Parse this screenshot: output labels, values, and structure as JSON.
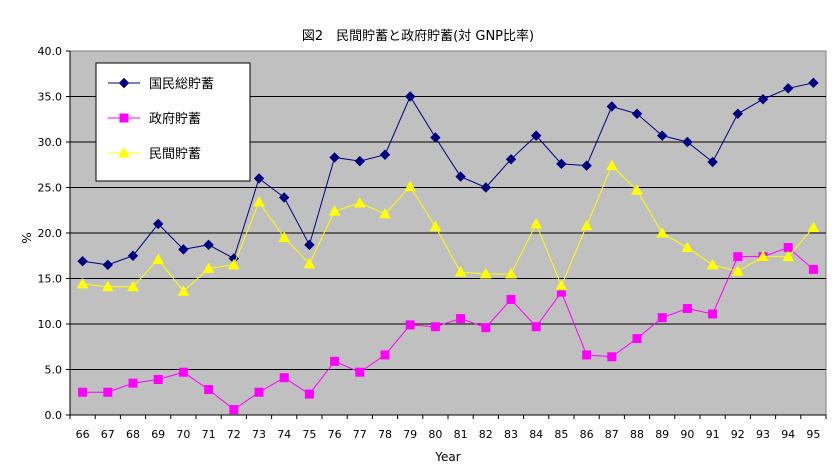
{
  "chart_data": {
    "type": "line",
    "title": "図2　民間貯蓄と政府貯蓄(対 GNP比率)",
    "xlabel": "Year",
    "ylabel": "%",
    "ylim": [
      0,
      40
    ],
    "y_ticks": [
      "0.0",
      "5.0",
      "10.0",
      "15.0",
      "20.0",
      "25.0",
      "30.0",
      "35.0",
      "40.0"
    ],
    "grid": true,
    "legend_position": "top-left",
    "categories": [
      "66",
      "67",
      "68",
      "69",
      "70",
      "71",
      "72",
      "73",
      "74",
      "75",
      "76",
      "77",
      "78",
      "79",
      "80",
      "81",
      "82",
      "83",
      "84",
      "85",
      "86",
      "87",
      "88",
      "89",
      "90",
      "91",
      "92",
      "93",
      "94",
      "95"
    ],
    "series": [
      {
        "name": "国民総貯蓄",
        "color": "#000080",
        "marker": "diamond",
        "values": [
          16.9,
          16.5,
          17.5,
          21.0,
          18.2,
          18.7,
          17.2,
          26.0,
          23.9,
          18.7,
          28.3,
          27.9,
          28.6,
          35.0,
          30.5,
          26.2,
          25.0,
          28.1,
          30.7,
          27.6,
          27.4,
          33.9,
          33.1,
          30.7,
          30.0,
          27.8,
          33.1,
          34.7,
          35.9,
          36.5
        ]
      },
      {
        "name": "政府貯蓄",
        "color": "#ff00ff",
        "marker": "square",
        "values": [
          2.5,
          2.5,
          3.5,
          3.9,
          4.7,
          2.8,
          0.6,
          2.5,
          4.1,
          2.3,
          5.9,
          4.7,
          6.6,
          9.9,
          9.7,
          10.6,
          9.6,
          12.7,
          9.7,
          13.5,
          6.6,
          6.4,
          8.4,
          10.7,
          11.7,
          11.1,
          17.4,
          17.4,
          18.4,
          16.0
        ]
      },
      {
        "name": "民間貯蓄",
        "color": "#ffff00",
        "marker": "triangle",
        "values": [
          14.4,
          14.1,
          14.1,
          17.1,
          13.6,
          16.1,
          16.5,
          23.4,
          19.5,
          16.6,
          22.4,
          23.3,
          22.1,
          25.1,
          20.7,
          15.7,
          15.5,
          15.5,
          21.0,
          14.2,
          20.8,
          27.4,
          24.7,
          20.0,
          18.4,
          16.5,
          15.8,
          17.4,
          17.4,
          20.6
        ]
      }
    ]
  }
}
